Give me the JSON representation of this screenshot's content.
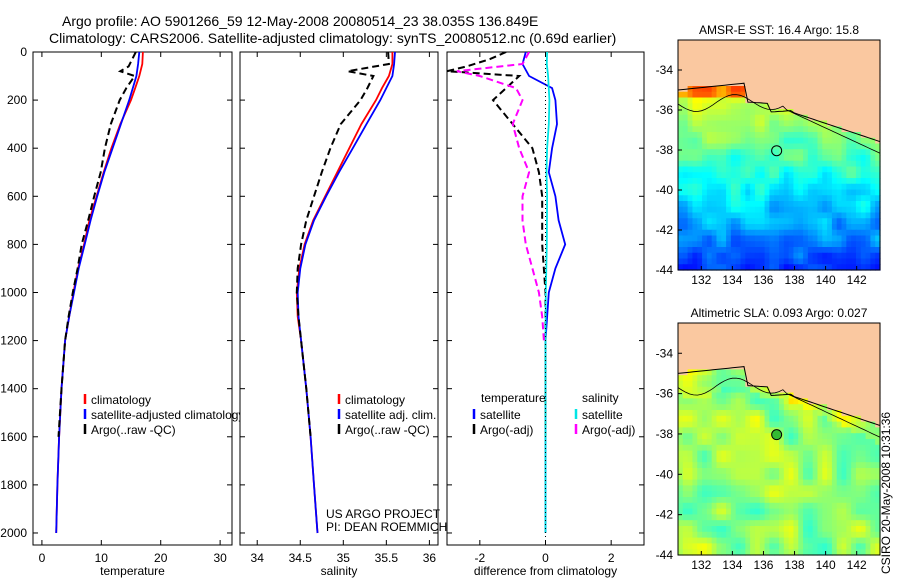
{
  "header": {
    "line1": "Argo profile: AO 5901266_59 12-May-2008 20080514_23 38.035S 136.849E",
    "line2": "Climatology: CARS2006. Satellite-adjusted climatology: synTS_20080512.nc (0.69d earlier)"
  },
  "credit": "CSIRO 20-May-2008 10:31:36",
  "project_note": {
    "line1": "US ARGO PROJECT",
    "line2": "PI: DEAN ROEMMICH"
  },
  "chart_data": [
    {
      "id": "temperature",
      "type": "line",
      "xlabel": "temperature",
      "ylabel": "",
      "xlim": [
        -1.5,
        32
      ],
      "ylim": [
        2050,
        0
      ],
      "x_ticks": [
        0,
        10,
        20,
        30
      ],
      "x_tick_labels": [
        "0",
        "10",
        "20",
        "30"
      ],
      "y_ticks": [
        0,
        200,
        400,
        600,
        800,
        1000,
        1200,
        1400,
        1600,
        1800,
        2000
      ],
      "y_tick_labels": [
        "0",
        "200",
        "400",
        "600",
        "800",
        "1000",
        "1200",
        "1400",
        "1600",
        "1800",
        "2000"
      ],
      "legend": [
        "climatology",
        "satellite-adjusted climatology",
        "Argo(..raw -QC)"
      ],
      "legend_position": "bottom-center",
      "series": [
        {
          "name": "climatology",
          "color": "#ff0000",
          "style": "solid",
          "depth": [
            0,
            50,
            100,
            150,
            200,
            300,
            400,
            500,
            600,
            700,
            800,
            900,
            1000,
            1100,
            1200,
            1400,
            1600,
            1800,
            2000
          ],
          "values": [
            17.0,
            16.9,
            16.4,
            15.7,
            15.0,
            13.2,
            11.7,
            10.4,
            9.2,
            8.0,
            7.1,
            6.1,
            5.3,
            4.6,
            3.9,
            3.3,
            2.9,
            2.6,
            2.4
          ]
        },
        {
          "name": "satellite-adjusted climatology",
          "color": "#0000ff",
          "style": "solid",
          "depth": [
            0,
            50,
            100,
            150,
            200,
            300,
            400,
            500,
            600,
            700,
            800,
            900,
            1000,
            1100,
            1200,
            1400,
            1600,
            1800,
            2000
          ],
          "values": [
            16.4,
            16.2,
            15.9,
            15.3,
            14.7,
            13.3,
            11.9,
            10.5,
            9.3,
            8.2,
            7.2,
            6.2,
            5.4,
            4.6,
            3.9,
            3.3,
            2.9,
            2.6,
            2.4
          ]
        },
        {
          "name": "Argo(..raw -QC)",
          "color": "#000000",
          "style": "dashed",
          "depth": [
            0,
            30,
            60,
            80,
            100,
            150,
            200,
            300,
            400,
            500,
            600,
            700,
            800,
            900,
            1000,
            1100,
            1200,
            1400,
            1600
          ],
          "values": [
            15.8,
            15.2,
            14.6,
            13.2,
            15.6,
            14.2,
            13.1,
            11.6,
            10.6,
            9.9,
            8.8,
            7.8,
            6.7,
            6.0,
            5.2,
            4.5,
            3.9,
            3.3,
            2.8
          ]
        }
      ]
    },
    {
      "id": "salinity",
      "type": "line",
      "xlabel": "salinity",
      "xlim": [
        33.8,
        36.1
      ],
      "ylim": [
        2050,
        0
      ],
      "x_ticks": [
        34,
        34.5,
        35,
        35.5,
        36
      ],
      "x_tick_labels": [
        "34",
        "34.5",
        "35",
        "35.5",
        "36"
      ],
      "legend": [
        "climatology",
        "satellite adj. clim.",
        "Argo(..raw -QC)"
      ],
      "legend_position": "bottom-center",
      "series": [
        {
          "name": "climatology",
          "color": "#ff0000",
          "style": "solid",
          "depth": [
            0,
            50,
            100,
            150,
            200,
            300,
            400,
            500,
            600,
            700,
            800,
            900,
            1000,
            1100,
            1200,
            1400,
            1600,
            1800,
            2000
          ],
          "values": [
            35.57,
            35.57,
            35.53,
            35.45,
            35.38,
            35.21,
            35.07,
            34.93,
            34.79,
            34.65,
            34.55,
            34.49,
            34.46,
            34.47,
            34.51,
            34.57,
            34.62,
            34.66,
            34.7
          ]
        },
        {
          "name": "satellite adj. clim.",
          "color": "#0000ff",
          "style": "solid",
          "depth": [
            0,
            50,
            100,
            150,
            200,
            300,
            400,
            500,
            600,
            700,
            800,
            900,
            1000,
            1100,
            1200,
            1400,
            1600,
            1800,
            2000
          ],
          "values": [
            35.6,
            35.59,
            35.57,
            35.5,
            35.43,
            35.27,
            35.11,
            34.95,
            34.8,
            34.66,
            34.56,
            34.5,
            34.47,
            34.48,
            34.51,
            34.57,
            34.62,
            34.66,
            34.7
          ]
        },
        {
          "name": "Argo(..raw -QC)",
          "color": "#000000",
          "style": "dashed",
          "depth": [
            0,
            50,
            80,
            100,
            150,
            200,
            300,
            400,
            500,
            600,
            700,
            800,
            900,
            1000,
            1100,
            1200,
            1400,
            1600
          ],
          "values": [
            35.52,
            35.53,
            35.05,
            35.35,
            35.28,
            35.2,
            34.97,
            34.85,
            34.75,
            34.66,
            34.57,
            34.51,
            34.47,
            34.46,
            34.48,
            34.51,
            34.57,
            34.62
          ]
        }
      ]
    },
    {
      "id": "difference",
      "type": "line",
      "xlabel": "difference from climatology",
      "xlim": [
        -3,
        3
      ],
      "ylim": [
        2050,
        0
      ],
      "x_ticks": [
        -2,
        0,
        2
      ],
      "x_tick_labels": [
        "-2",
        "0",
        "2"
      ],
      "legend_groups": [
        {
          "title": "temperature",
          "entries": [
            "satellite",
            "Argo(-adj)"
          ]
        },
        {
          "title": "salinity",
          "entries": [
            "satellite",
            "Argo(-adj)"
          ]
        }
      ],
      "legend_position": "bottom-center",
      "series": [
        {
          "name": "temperature satellite",
          "color": "#0000ff",
          "style": "solid",
          "depth": [
            0,
            50,
            100,
            150,
            200,
            300,
            400,
            500,
            600,
            700,
            800,
            900,
            1000,
            1200,
            1400,
            1600,
            1800,
            2000
          ],
          "values": [
            -0.6,
            -0.7,
            -0.5,
            0.2,
            0.3,
            0.35,
            0.2,
            0.1,
            0.3,
            0.4,
            0.6,
            0.3,
            0.1,
            0.0,
            0.0,
            0.0,
            0.0,
            0.0
          ]
        },
        {
          "name": "temperature Argo(-adj)",
          "color": "#000000",
          "style": "dashed",
          "depth": [
            0,
            30,
            60,
            80,
            100,
            150,
            200,
            300,
            400,
            500,
            600,
            700,
            800,
            1000,
            1200,
            1400,
            1600
          ],
          "values": [
            -1.2,
            -1.7,
            -2.4,
            -3.0,
            -0.8,
            -1.2,
            -1.6,
            -1.0,
            -0.4,
            -0.2,
            -0.1,
            -0.1,
            -0.1,
            0.0,
            0.0,
            0.0,
            0.0
          ]
        },
        {
          "name": "salinity satellite",
          "color": "#00e5e5",
          "style": "solid",
          "depth": [
            0,
            50,
            100,
            200,
            300,
            400,
            500,
            600,
            800,
            1000,
            1200,
            1400,
            1600,
            1800,
            2000
          ],
          "values": [
            0.05,
            0.04,
            0.08,
            0.12,
            0.1,
            0.05,
            0.03,
            0.05,
            0.04,
            0.01,
            0.0,
            0.0,
            0.0,
            0.0,
            0.0
          ]
        },
        {
          "name": "salinity Argo(-adj)",
          "color": "#ff00ff",
          "style": "dashed",
          "depth": [
            0,
            50,
            80,
            100,
            150,
            200,
            300,
            400,
            500,
            600,
            700,
            800,
            900,
            1000,
            1100,
            1200
          ],
          "values": [
            -0.5,
            -0.7,
            -2.7,
            -2.0,
            -0.9,
            -0.7,
            -1.0,
            -0.8,
            -0.5,
            -0.7,
            -0.7,
            -0.6,
            -0.4,
            -0.2,
            -0.1,
            -0.05
          ]
        }
      ]
    },
    {
      "id": "sst_map",
      "type": "heatmap",
      "title": "AMSR-E SST: 16.4 Argo: 15.8",
      "x_ticks": [
        132,
        134,
        136,
        138,
        140,
        142
      ],
      "x_tick_labels": [
        "132",
        "134",
        "136",
        "138",
        "140",
        "142"
      ],
      "y_ticks": [
        -34,
        -36,
        -38,
        -40,
        -42,
        -44
      ],
      "y_tick_labels": [
        "-34",
        "-36",
        "-38",
        "-40",
        "-42",
        "-44"
      ],
      "xlim": [
        130.5,
        143.5
      ],
      "ylim": [
        -44,
        -32.5
      ],
      "marker": {
        "lon": 136.849,
        "lat": -38.035
      }
    },
    {
      "id": "sla_map",
      "type": "heatmap",
      "title": "Altimetric SLA: 0.093 Argo: 0.027",
      "x_ticks": [
        132,
        134,
        136,
        138,
        140,
        142
      ],
      "x_tick_labels": [
        "132",
        "134",
        "136",
        "138",
        "140",
        "142"
      ],
      "y_ticks": [
        -34,
        -36,
        -38,
        -40,
        -42,
        -44
      ],
      "y_tick_labels": [
        "-34",
        "-36",
        "-38",
        "-40",
        "-42",
        "-44"
      ],
      "xlim": [
        130.5,
        143.5
      ],
      "ylim": [
        -44,
        -32.5
      ],
      "marker": {
        "lon": 136.849,
        "lat": -38.035
      }
    }
  ]
}
